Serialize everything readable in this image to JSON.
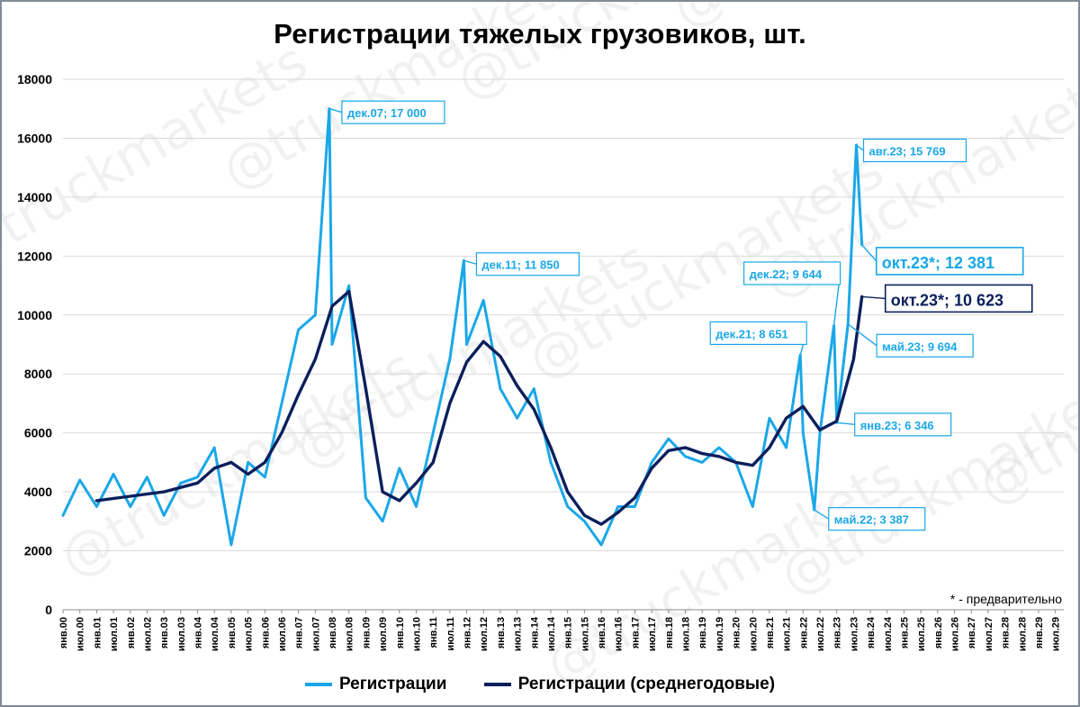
{
  "title": "Регистрации тяжелых грузовиков, шт.",
  "footnote": "* - предварительно",
  "watermark": "@truckmarkets",
  "colors": {
    "registrations": "#1aa7e8",
    "average": "#0b1f5c",
    "grid": "#d9d9d9"
  },
  "chart_data": {
    "type": "line",
    "title": "Регистрации тяжелых грузовиков, шт.",
    "xlabel": "",
    "ylabel": "",
    "ylim": [
      0,
      18000
    ],
    "yticks": [
      0,
      2000,
      4000,
      6000,
      8000,
      10000,
      12000,
      14000,
      16000,
      18000
    ],
    "xlim": [
      "янв.00",
      "окт.29"
    ],
    "x_tick_labels": [
      "янв.00",
      "июл.00",
      "янв.01",
      "июл.01",
      "янв.02",
      "июл.02",
      "янв.03",
      "июл.03",
      "янв.04",
      "июл.04",
      "янв.05",
      "июл.05",
      "янв.06",
      "июл.06",
      "янв.07",
      "июл.07",
      "янв.08",
      "июл.08",
      "янв.09",
      "июл.09",
      "янв.10",
      "июл.10",
      "янв.11",
      "июл.11",
      "янв.12",
      "июл.12",
      "янв.13",
      "июл.13",
      "янв.14",
      "июл.14",
      "янв.15",
      "июл.15",
      "янв.16",
      "июл.16",
      "янв.17",
      "июл.17",
      "янв.18",
      "июл.18",
      "янв.19",
      "июл.19",
      "янв.20",
      "июл.20",
      "янв.21",
      "июл.21",
      "янв.22",
      "июл.22",
      "янв.23",
      "июл.23",
      "янв.24",
      "июл.24",
      "янв.25",
      "июл.25",
      "янв.26",
      "июл.26",
      "янв.27",
      "июл.27",
      "янв.28",
      "июл.28",
      "янв.29",
      "июл.29"
    ],
    "grid": "horizontal",
    "legend_position": "bottom",
    "series": [
      {
        "name": "Регистрации",
        "color": "#1aa7e8",
        "x": [
          "янв.00",
          "июл.00",
          "янв.01",
          "июл.01",
          "янв.02",
          "июл.02",
          "янв.03",
          "июл.03",
          "янв.04",
          "июл.04",
          "янв.05",
          "июл.05",
          "янв.06",
          "июл.06",
          "янв.07",
          "июл.07",
          "дек.07",
          "янв.08",
          "июл.08",
          "янв.09",
          "июл.09",
          "янв.10",
          "июл.10",
          "янв.11",
          "июл.11",
          "дек.11",
          "янв.12",
          "июл.12",
          "янв.13",
          "июл.13",
          "янв.14",
          "июл.14",
          "янв.15",
          "июл.15",
          "янв.16",
          "июл.16",
          "янв.17",
          "июл.17",
          "янв.18",
          "июл.18",
          "янв.19",
          "июл.19",
          "янв.20",
          "июл.20",
          "янв.21",
          "июл.21",
          "дек.21",
          "янв.22",
          "май.22",
          "июл.22",
          "дек.22",
          "янв.23",
          "май.23",
          "авг.23",
          "окт.23"
        ],
        "values": [
          3200,
          4400,
          3500,
          4600,
          3500,
          4500,
          3200,
          4300,
          4500,
          5500,
          2200,
          5000,
          4500,
          7000,
          9500,
          10000,
          17000,
          9000,
          11000,
          3800,
          3000,
          4800,
          3500,
          6000,
          8500,
          11850,
          9000,
          10500,
          7500,
          6500,
          7500,
          5000,
          3500,
          3000,
          2200,
          3500,
          3500,
          5000,
          5800,
          5200,
          5000,
          5500,
          5000,
          3500,
          6500,
          5500,
          8651,
          6000,
          3387,
          6000,
          9644,
          6346,
          9694,
          15769,
          12381
        ]
      },
      {
        "name": "Регистрации (среднегодовые)",
        "color": "#0b1f5c",
        "x": [
          "янв.01",
          "янв.02",
          "янв.03",
          "янв.04",
          "июл.04",
          "янв.05",
          "июл.05",
          "янв.06",
          "июл.06",
          "янв.07",
          "июл.07",
          "янв.08",
          "июл.08",
          "янв.09",
          "июл.09",
          "янв.10",
          "июл.10",
          "янв.11",
          "июл.11",
          "янв.12",
          "июл.12",
          "янв.13",
          "июл.13",
          "янв.14",
          "июл.14",
          "янв.15",
          "июл.15",
          "янв.16",
          "июл.16",
          "янв.17",
          "июл.17",
          "янв.18",
          "июл.18",
          "янв.19",
          "июл.19",
          "янв.20",
          "июл.20",
          "янв.21",
          "июл.21",
          "янв.22",
          "июл.22",
          "янв.23",
          "июл.23",
          "окт.23"
        ],
        "values": [
          3700,
          3850,
          4000,
          4300,
          4800,
          5000,
          4600,
          5000,
          6000,
          7300,
          8500,
          10300,
          10800,
          7500,
          4000,
          3700,
          4300,
          5000,
          7000,
          8400,
          9100,
          8600,
          7600,
          6800,
          5500,
          4000,
          3200,
          2900,
          3300,
          3800,
          4800,
          5400,
          5500,
          5300,
          5200,
          5000,
          4900,
          5500,
          6500,
          6900,
          6100,
          6400,
          8500,
          10623
        ]
      }
    ],
    "annotations": [
      {
        "text": "дек.07; 17 000",
        "x": "дек.07",
        "y": 17000,
        "series": "Регистрации"
      },
      {
        "text": "дек.11; 11 850",
        "x": "дек.11",
        "y": 11850,
        "series": "Регистрации"
      },
      {
        "text": "дек.21; 8 651",
        "x": "дек.21",
        "y": 8651,
        "series": "Регистрации"
      },
      {
        "text": "дек.22; 9 644",
        "x": "дек.22",
        "y": 9644,
        "series": "Регистрации"
      },
      {
        "text": "май.22; 3 387",
        "x": "май.22",
        "y": 3387,
        "series": "Регистрации"
      },
      {
        "text": "янв.23; 6 346",
        "x": "янв.23",
        "y": 6346,
        "series": "Регистрации"
      },
      {
        "text": "май.23; 9 694",
        "x": "май.23",
        "y": 9694,
        "series": "Регистрации"
      },
      {
        "text": "авг.23; 15 769",
        "x": "авг.23",
        "y": 15769,
        "series": "Регистрации"
      },
      {
        "text": "окт.23*; 12 381",
        "x": "окт.23",
        "y": 12381,
        "series": "Регистрации"
      },
      {
        "text": "окт.23*; 10 623",
        "x": "окт.23",
        "y": 10623,
        "series": "Регистрации (среднегодовые)"
      }
    ]
  }
}
